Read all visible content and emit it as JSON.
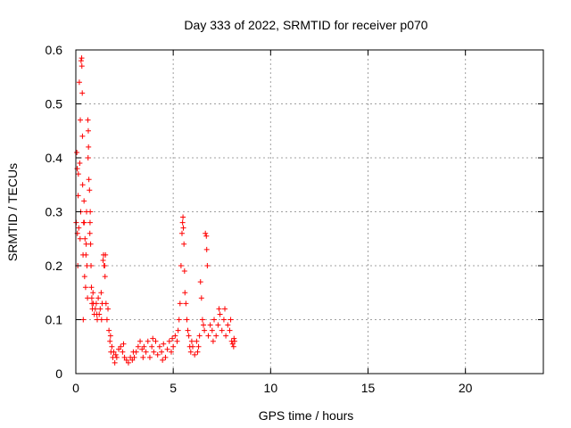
{
  "chart_data": {
    "type": "scatter",
    "title": "Day 333 of 2022, SRMTID for receiver p070",
    "xlabel": "GPS time / hours",
    "ylabel": "SRMTID / TECUs",
    "xlim": [
      0,
      24
    ],
    "ylim": [
      0,
      0.6
    ],
    "x_ticks": [
      "0",
      "5",
      "10",
      "15",
      "20"
    ],
    "y_ticks": [
      "0",
      "0.1",
      "0.2",
      "0.3",
      "0.4",
      "0.5",
      "0.6"
    ],
    "grid": true,
    "marker": "+",
    "series_color": "#ff0000",
    "series": [
      {
        "name": "p070",
        "points": [
          [
            0.02,
            0.28
          ],
          [
            0.05,
            0.41
          ],
          [
            0.07,
            0.38
          ],
          [
            0.1,
            0.2
          ],
          [
            0.12,
            0.33
          ],
          [
            0.15,
            0.27
          ],
          [
            0.18,
            0.54
          ],
          [
            0.2,
            0.39
          ],
          [
            0.22,
            0.25
          ],
          [
            0.25,
            0.3
          ],
          [
            0.27,
            0.58
          ],
          [
            0.3,
            0.585
          ],
          [
            0.31,
            0.57
          ],
          [
            0.33,
            0.52
          ],
          [
            0.35,
            0.35
          ],
          [
            0.37,
            0.22
          ],
          [
            0.38,
            0.1
          ],
          [
            0.4,
            0.28
          ],
          [
            0.42,
            0.32
          ],
          [
            0.45,
            0.18
          ],
          [
            0.47,
            0.25
          ],
          [
            0.5,
            0.16
          ],
          [
            0.52,
            0.22
          ],
          [
            0.55,
            0.3
          ],
          [
            0.57,
            0.2
          ],
          [
            0.6,
            0.14
          ],
          [
            0.62,
            0.47
          ],
          [
            0.64,
            0.45
          ],
          [
            0.65,
            0.42
          ],
          [
            0.67,
            0.36
          ],
          [
            0.7,
            0.34
          ],
          [
            0.72,
            0.26
          ],
          [
            0.74,
            0.3
          ],
          [
            0.76,
            0.24
          ],
          [
            0.78,
            0.2
          ],
          [
            0.8,
            0.16
          ],
          [
            0.82,
            0.14
          ],
          [
            0.85,
            0.12
          ],
          [
            0.88,
            0.15
          ],
          [
            0.9,
            0.13
          ],
          [
            0.95,
            0.11
          ],
          [
            1.0,
            0.12
          ],
          [
            1.05,
            0.13
          ],
          [
            1.1,
            0.1
          ],
          [
            1.15,
            0.14
          ],
          [
            1.2,
            0.11
          ],
          [
            1.25,
            0.12
          ],
          [
            1.3,
            0.15
          ],
          [
            1.35,
            0.13
          ],
          [
            1.4,
            0.21
          ],
          [
            1.42,
            0.22
          ],
          [
            1.45,
            0.2
          ],
          [
            1.5,
            0.18
          ],
          [
            1.52,
            0.22
          ],
          [
            1.55,
            0.13
          ],
          [
            1.6,
            0.1
          ],
          [
            1.65,
            0.12
          ],
          [
            1.7,
            0.08
          ],
          [
            1.75,
            0.06
          ],
          [
            1.8,
            0.04
          ],
          [
            1.85,
            0.05
          ],
          [
            1.9,
            0.03
          ],
          [
            1.95,
            0.04
          ],
          [
            2.0,
            0.02
          ],
          [
            2.1,
            0.03
          ],
          [
            2.2,
            0.045
          ],
          [
            2.3,
            0.05
          ],
          [
            2.4,
            0.04
          ],
          [
            2.5,
            0.03
          ],
          [
            2.6,
            0.025
          ],
          [
            2.7,
            0.02
          ],
          [
            2.8,
            0.03
          ],
          [
            2.9,
            0.025
          ],
          [
            3.0,
            0.03
          ],
          [
            3.1,
            0.04
          ],
          [
            3.2,
            0.05
          ],
          [
            3.3,
            0.06
          ],
          [
            3.4,
            0.045
          ],
          [
            3.5,
            0.05
          ],
          [
            3.6,
            0.04
          ],
          [
            3.7,
            0.06
          ],
          [
            3.8,
            0.03
          ],
          [
            3.9,
            0.05
          ],
          [
            4.0,
            0.04
          ],
          [
            4.1,
            0.06
          ],
          [
            4.2,
            0.035
          ],
          [
            4.3,
            0.05
          ],
          [
            4.4,
            0.04
          ],
          [
            4.5,
            0.055
          ],
          [
            4.6,
            0.03
          ],
          [
            4.7,
            0.045
          ],
          [
            4.8,
            0.06
          ],
          [
            4.9,
            0.04
          ],
          [
            5.0,
            0.05
          ],
          [
            5.1,
            0.07
          ],
          [
            5.2,
            0.06
          ],
          [
            5.3,
            0.1
          ],
          [
            5.35,
            0.13
          ],
          [
            5.4,
            0.2
          ],
          [
            5.45,
            0.26
          ],
          [
            5.5,
            0.29
          ],
          [
            5.52,
            0.27
          ],
          [
            5.55,
            0.24
          ],
          [
            5.6,
            0.15
          ],
          [
            5.65,
            0.13
          ],
          [
            5.7,
            0.1
          ],
          [
            5.75,
            0.08
          ],
          [
            5.8,
            0.07
          ],
          [
            5.85,
            0.05
          ],
          [
            5.9,
            0.04
          ],
          [
            6.0,
            0.05
          ],
          [
            6.1,
            0.035
          ],
          [
            6.2,
            0.06
          ],
          [
            6.3,
            0.05
          ],
          [
            6.35,
            0.07
          ],
          [
            6.4,
            0.17
          ],
          [
            6.45,
            0.14
          ],
          [
            6.5,
            0.1
          ],
          [
            6.6,
            0.08
          ],
          [
            6.65,
            0.26
          ],
          [
            6.7,
            0.255
          ],
          [
            6.75,
            0.2
          ],
          [
            6.8,
            0.07
          ],
          [
            6.9,
            0.09
          ],
          [
            7.0,
            0.08
          ],
          [
            7.1,
            0.1
          ],
          [
            7.2,
            0.07
          ],
          [
            7.3,
            0.09
          ],
          [
            7.4,
            0.11
          ],
          [
            7.5,
            0.08
          ],
          [
            7.6,
            0.1
          ],
          [
            7.7,
            0.07
          ],
          [
            7.8,
            0.09
          ],
          [
            7.9,
            0.08
          ],
          [
            8.0,
            0.06
          ],
          [
            8.05,
            0.055
          ],
          [
            8.1,
            0.05
          ],
          [
            8.15,
            0.06
          ],
          [
            0.08,
            0.26
          ],
          [
            0.13,
            0.37
          ],
          [
            0.23,
            0.47
          ],
          [
            0.34,
            0.44
          ],
          [
            0.43,
            0.28
          ],
          [
            0.53,
            0.24
          ],
          [
            0.63,
            0.4
          ],
          [
            0.73,
            0.28
          ],
          [
            0.83,
            0.13
          ],
          [
            1.08,
            0.11
          ],
          [
            1.32,
            0.1
          ],
          [
            1.48,
            0.2
          ],
          [
            1.78,
            0.07
          ],
          [
            2.05,
            0.035
          ],
          [
            2.45,
            0.055
          ],
          [
            2.95,
            0.04
          ],
          [
            3.45,
            0.03
          ],
          [
            3.95,
            0.065
          ],
          [
            4.45,
            0.025
          ],
          [
            4.95,
            0.065
          ],
          [
            5.25,
            0.08
          ],
          [
            5.48,
            0.28
          ],
          [
            5.58,
            0.19
          ],
          [
            5.95,
            0.06
          ],
          [
            6.25,
            0.04
          ],
          [
            6.55,
            0.09
          ],
          [
            6.72,
            0.23
          ],
          [
            7.05,
            0.06
          ],
          [
            7.35,
            0.12
          ],
          [
            7.65,
            0.12
          ],
          [
            7.95,
            0.1
          ],
          [
            8.12,
            0.065
          ]
        ]
      }
    ]
  }
}
